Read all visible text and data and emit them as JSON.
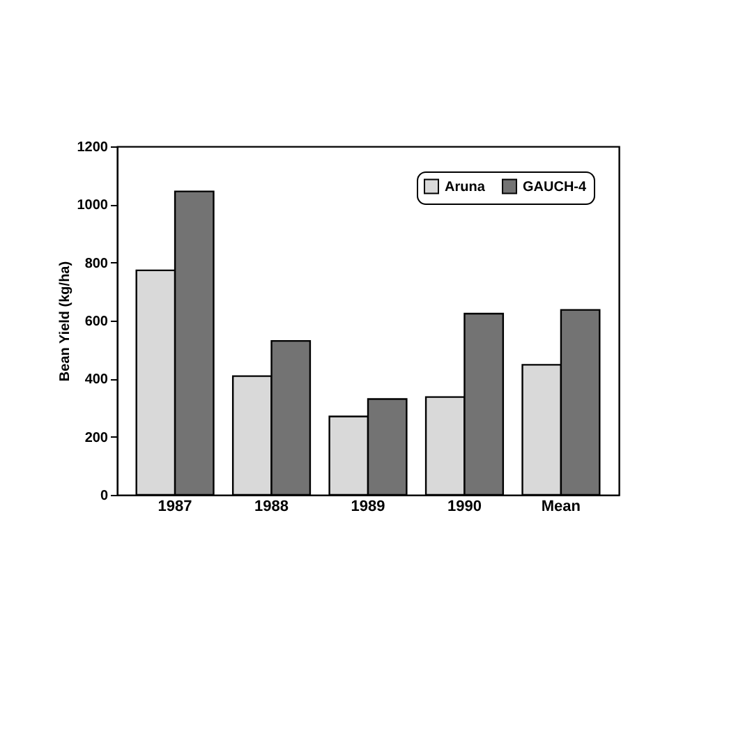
{
  "chart_data": {
    "type": "bar",
    "ylabel": "Bean Yield (kg/ha)",
    "categories": [
      "1987",
      "1988",
      "1989",
      "1990",
      "Mean"
    ],
    "series": [
      {
        "name": "Aruna",
        "color": "#d9d9d9",
        "values": [
          773,
          409,
          270,
          337,
          448
        ]
      },
      {
        "name": "GAUCH-4",
        "color": "#737373",
        "values": [
          1045,
          530,
          330,
          624,
          637
        ]
      }
    ],
    "ylim": [
      0,
      1200
    ],
    "yticks": [
      0,
      200,
      400,
      600,
      800,
      1000,
      1200
    ],
    "grid": false,
    "legend": "top right"
  }
}
